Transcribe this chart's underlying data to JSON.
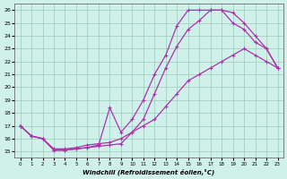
{
  "xlabel": "Windchill (Refroidissement éolien,°C)",
  "xlim_min": -0.5,
  "xlim_max": 23.5,
  "ylim_min": 14.5,
  "ylim_max": 26.5,
  "yticks": [
    15,
    16,
    17,
    18,
    19,
    20,
    21,
    22,
    23,
    24,
    25,
    26
  ],
  "xticks": [
    0,
    1,
    2,
    3,
    4,
    5,
    6,
    7,
    8,
    9,
    10,
    11,
    12,
    13,
    14,
    15,
    16,
    17,
    18,
    19,
    20,
    21,
    22,
    23
  ],
  "line_color": "#aa33aa",
  "background_color": "#d0f0ea",
  "grid_color": "#99ccbb",
  "series": [
    {
      "x": [
        0,
        1,
        2,
        3,
        4,
        5,
        6,
        7,
        8,
        9,
        10,
        11,
        12,
        13,
        14,
        15,
        16,
        17,
        18,
        19,
        20,
        21,
        22,
        23
      ],
      "y": [
        17,
        16.2,
        16.0,
        15.1,
        15.1,
        15.2,
        15.3,
        15.5,
        18.4,
        16.5,
        17.5,
        19.0,
        21.0,
        22.5,
        24.8,
        26.0,
        26.0,
        26.0,
        26.0,
        25.8,
        25.0,
        24.0,
        23.0,
        21.5
      ]
    },
    {
      "x": [
        0,
        1,
        2,
        3,
        4,
        5,
        6,
        7,
        8,
        9,
        10,
        11,
        12,
        13,
        14,
        15,
        16,
        17,
        18,
        19,
        20,
        21,
        22,
        23
      ],
      "y": [
        17,
        16.2,
        16.0,
        15.1,
        15.1,
        15.2,
        15.3,
        15.4,
        15.5,
        15.6,
        16.5,
        17.5,
        19.5,
        21.5,
        23.2,
        24.5,
        25.2,
        26.0,
        26.0,
        25.0,
        24.5,
        23.5,
        23.0,
        21.5
      ]
    },
    {
      "x": [
        0,
        1,
        2,
        3,
        4,
        5,
        6,
        7,
        8,
        9,
        10,
        11,
        12,
        13,
        14,
        15,
        16,
        17,
        18,
        19,
        20,
        21,
        22,
        23
      ],
      "y": [
        17,
        16.2,
        16.0,
        15.2,
        15.2,
        15.3,
        15.5,
        15.6,
        15.7,
        16.0,
        16.5,
        17.0,
        17.5,
        18.5,
        19.5,
        20.5,
        21.0,
        21.5,
        22.0,
        22.5,
        23.0,
        22.5,
        22.0,
        21.5
      ]
    }
  ]
}
